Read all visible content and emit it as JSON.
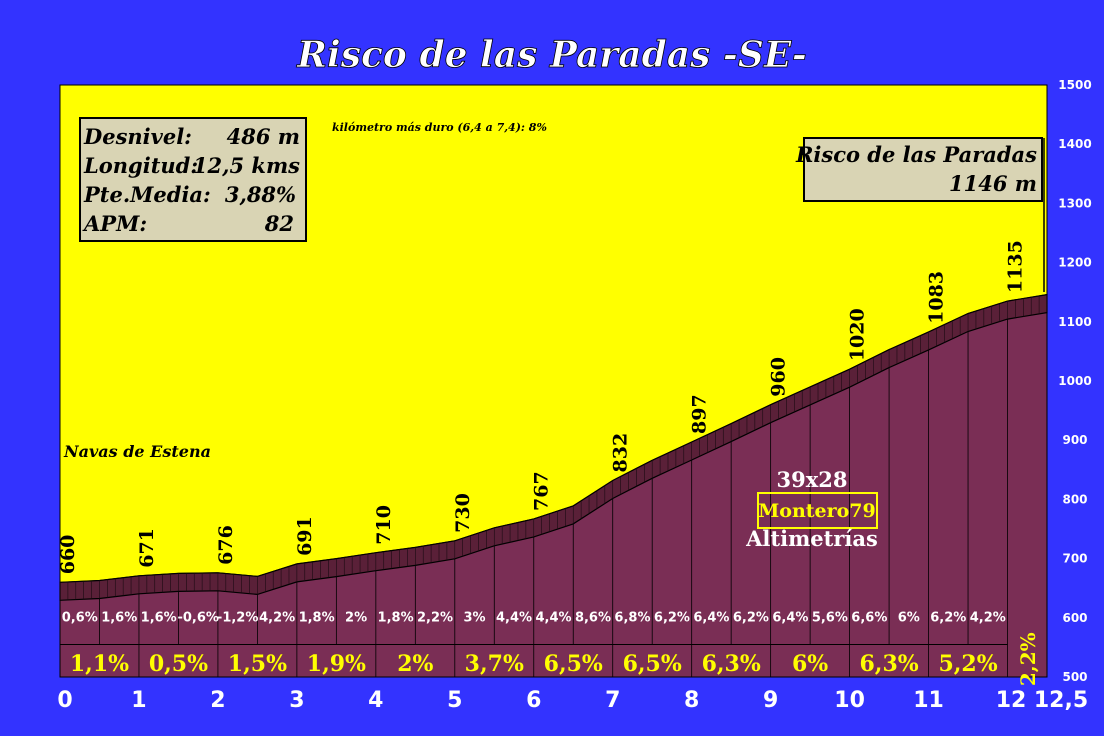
{
  "chart_data": {
    "type": "area",
    "title": "Risco de las Paradas -SE-",
    "xlim": [
      0,
      12.5
    ],
    "ylim": [
      500,
      1500
    ],
    "x_ticks": [
      "0",
      "1",
      "2",
      "3",
      "4",
      "5",
      "6",
      "7",
      "8",
      "9",
      "10",
      "11",
      "12",
      "12,5"
    ],
    "y_ticks": [
      "500",
      "600",
      "700",
      "800",
      "900",
      "1000",
      "1100",
      "1200",
      "1300",
      "1400",
      "1500"
    ],
    "profile": {
      "x": [
        0,
        0.5,
        1,
        1.5,
        2,
        2.5,
        3,
        3.5,
        4,
        4.5,
        5,
        5.5,
        6,
        6.5,
        7,
        7.5,
        8,
        8.5,
        9,
        9.5,
        10,
        10.5,
        11,
        11.5,
        12,
        12.5
      ],
      "y": [
        660,
        663,
        671,
        675,
        676,
        670,
        691,
        700,
        710,
        719,
        730,
        752,
        767,
        789,
        832,
        866,
        897,
        928,
        960,
        990,
        1020,
        1053,
        1083,
        1114,
        1135,
        1146
      ]
    },
    "altitude_labels": [
      {
        "x": 0,
        "y": 660,
        "text": "660"
      },
      {
        "x": 1,
        "y": 671,
        "text": "671"
      },
      {
        "x": 2,
        "y": 676,
        "text": "676"
      },
      {
        "x": 3,
        "y": 691,
        "text": "691"
      },
      {
        "x": 4,
        "y": 710,
        "text": "710"
      },
      {
        "x": 5,
        "y": 730,
        "text": "730"
      },
      {
        "x": 6,
        "y": 767,
        "text": "767"
      },
      {
        "x": 7,
        "y": 832,
        "text": "832"
      },
      {
        "x": 8,
        "y": 897,
        "text": "897"
      },
      {
        "x": 9,
        "y": 960,
        "text": "960"
      },
      {
        "x": 10,
        "y": 1020,
        "text": "1020"
      },
      {
        "x": 11,
        "y": 1083,
        "text": "1083"
      },
      {
        "x": 12,
        "y": 1135,
        "text": "1135"
      }
    ],
    "half_km_grades": [
      "0,6%",
      "1,6%",
      "1,6%",
      "-0,6%",
      "-1,2%",
      "4,2%",
      "1,8%",
      "2%",
      "1,8%",
      "2,2%",
      "3%",
      "4,4%",
      "4,4%",
      "8,6%",
      "6,8%",
      "6,2%",
      "6,4%",
      "6,2%",
      "6,4%",
      "5,6%",
      "6,6%",
      "6%",
      "6,2%",
      "4,2%"
    ],
    "km_grades": [
      "1,1%",
      "0,5%",
      "1,5%",
      "1,9%",
      "2%",
      "3,7%",
      "6,5%",
      "6,5%",
      "6,3%",
      "6%",
      "6,3%",
      "5,2%",
      "2,2%"
    ],
    "colors": {
      "background": "#3333ff",
      "plot": "#ffff00",
      "profile_fill": "#7a2e55",
      "profile_band": "#5a2038",
      "km_grade_text": "#ffff00",
      "info_box": "#d9d4b4"
    }
  },
  "stats": {
    "desnivel_label": "Desnivel:",
    "desnivel_value": "486 m",
    "longitud_label": "Longitud:",
    "longitud_value": "12,5 kms",
    "pte_label": "Pte.Media:",
    "pte_value": "3,88%",
    "apm_label": "APM:",
    "apm_value": "82"
  },
  "hardest_km": "kilómetro más duro (6,4 a 7,4):   8%",
  "start_label": "Navas de Estena",
  "summit": {
    "name": "Risco de las Paradas",
    "altitude": "1146 m"
  },
  "credits": {
    "gear": "39x28",
    "author": "Montero79",
    "site": "Altimetrías"
  }
}
